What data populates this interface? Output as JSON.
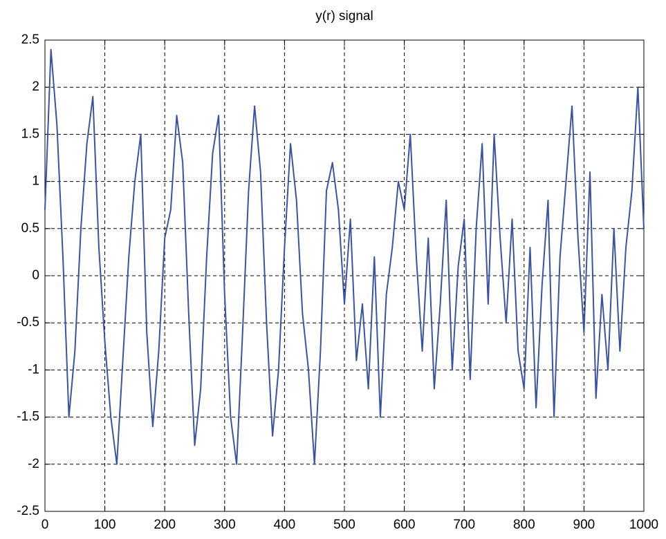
{
  "chart_data": {
    "type": "line",
    "title": "y(r)  signal",
    "x": [
      0,
      10,
      20,
      30,
      40,
      50,
      60,
      70,
      80,
      90,
      100,
      110,
      120,
      130,
      140,
      150,
      160,
      170,
      180,
      190,
      200,
      210,
      220,
      230,
      240,
      250,
      260,
      270,
      280,
      290,
      300,
      310,
      320,
      330,
      340,
      350,
      360,
      370,
      380,
      390,
      400,
      410,
      420,
      430,
      440,
      450,
      460,
      470,
      480,
      490,
      500,
      510,
      520,
      530,
      540,
      550,
      560,
      570,
      580,
      590,
      600,
      610,
      620,
      630,
      640,
      650,
      660,
      670,
      680,
      690,
      700,
      710,
      720,
      730,
      740,
      750,
      760,
      770,
      780,
      790,
      800,
      810,
      820,
      830,
      840,
      850,
      860,
      870,
      880,
      890,
      900,
      910,
      920,
      930,
      940,
      950,
      960,
      970,
      980,
      990,
      1000
    ],
    "series": [
      {
        "color": "#3953a4",
        "values": [
          0.7,
          2.4,
          1.6,
          0.2,
          -1.5,
          -0.8,
          0.5,
          1.4,
          1.9,
          0.3,
          -0.7,
          -1.5,
          -2.0,
          -0.9,
          0.2,
          1.0,
          1.5,
          -0.6,
          -1.6,
          -0.8,
          0.4,
          0.7,
          1.7,
          1.2,
          -0.4,
          -1.8,
          -1.2,
          0.2,
          1.3,
          1.7,
          -0.2,
          -1.5,
          -2.0,
          -0.6,
          0.9,
          1.8,
          1.1,
          -0.5,
          -1.7,
          -1.0,
          0.3,
          1.4,
          0.8,
          -0.4,
          -1.0,
          -2.0,
          -0.8,
          0.9,
          1.2,
          0.7,
          -0.3,
          0.6,
          -0.9,
          -0.3,
          -1.2,
          0.2,
          -1.5,
          -0.2,
          0.3,
          1.0,
          0.7,
          1.5,
          0.2,
          -0.8,
          0.4,
          -1.2,
          -0.3,
          0.8,
          -1.0,
          0.1,
          0.6,
          -1.1,
          0.5,
          1.4,
          -0.3,
          1.5,
          0.4,
          -0.5,
          0.6,
          -0.8,
          -1.2,
          0.3,
          -1.4,
          -0.1,
          0.8,
          -1.5,
          0.2,
          1.0,
          1.8,
          0.4,
          -0.6,
          1.1,
          -1.3,
          -0.2,
          -1.0,
          0.5,
          -0.8,
          0.3,
          0.9,
          2.0,
          0.5
        ]
      }
    ],
    "xlim": [
      0,
      1000
    ],
    "xticks": [
      0,
      100,
      200,
      300,
      400,
      500,
      600,
      700,
      800,
      900,
      1000
    ],
    "ylim": [
      -2.5,
      2.5
    ],
    "yticks": [
      -2.5,
      -2,
      -1.5,
      -1,
      -0.5,
      0,
      0.5,
      1,
      1.5,
      2,
      2.5
    ],
    "grid": true
  }
}
